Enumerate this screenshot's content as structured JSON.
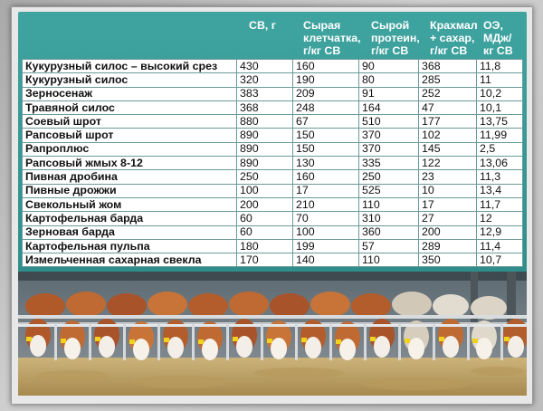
{
  "headers": {
    "dm": "СВ, г",
    "fiber_1": "Сырая",
    "fiber_2": "клетчатка,",
    "fiber_3": "г/кг СВ",
    "protein_1": "Сырой",
    "protein_2": "протеин,",
    "protein_3": "г/кг СВ",
    "starch_1": "Крахмал",
    "starch_2": "+ сахар,",
    "starch_3": "г/кг СВ",
    "energy_1": "ОЭ,",
    "energy_2": "МДж/",
    "energy_3": "кг СВ"
  },
  "rows": [
    {
      "name": "Кукурузный силос – высокий срез",
      "dm": "430",
      "fiber": "160",
      "protein": "90",
      "starch": "368",
      "energy": "11,8"
    },
    {
      "name": "Кукурузный силос",
      "dm": "320",
      "fiber": "190",
      "protein": "80",
      "starch": "285",
      "energy": "11"
    },
    {
      "name": "Зерносенаж",
      "dm": "383",
      "fiber": "209",
      "protein": "91",
      "starch": "252",
      "energy": "10,2"
    },
    {
      "name": "Травяной силос",
      "dm": "368",
      "fiber": "248",
      "protein": "164",
      "starch": "47",
      "energy": "10,1"
    },
    {
      "name": "Соевый шрот",
      "dm": "880",
      "fiber": "67",
      "protein": "510",
      "starch": "177",
      "energy": "13,75"
    },
    {
      "name": "Рапсовый шрот",
      "dm": "890",
      "fiber": "150",
      "protein": "370",
      "starch": "102",
      "energy": "11,99"
    },
    {
      "name": "Рапроплюс",
      "dm": "890",
      "fiber": "150",
      "protein": "370",
      "starch": "145",
      "energy": "2,5"
    },
    {
      "name": "Рапсовый жмых 8-12",
      "dm": "890",
      "fiber": "130",
      "protein": "335",
      "starch": "122",
      "energy": "13,06"
    },
    {
      "name": "Пивная дробина",
      "dm": "250",
      "fiber": "160",
      "protein": "250",
      "starch": "23",
      "energy": "11,3"
    },
    {
      "name": "Пивные дрожжи",
      "dm": "100",
      "fiber": "17",
      "protein": "525",
      "starch": "10",
      "energy": "13,4"
    },
    {
      "name": "Свекольный жом",
      "dm": "200",
      "fiber": "210",
      "protein": "110",
      "starch": "17",
      "energy": "11,7"
    },
    {
      "name": "Картофельная барда",
      "dm": "60",
      "fiber": "70",
      "protein": "310",
      "starch": "27",
      "energy": "12"
    },
    {
      "name": "Зерновая барда",
      "dm": "60",
      "fiber": "100",
      "protein": "360",
      "starch": "200",
      "energy": "12,9"
    },
    {
      "name": "Картофельная пульпа",
      "dm": "180",
      "fiber": "199",
      "protein": "57",
      "starch": "289",
      "energy": "11,4"
    },
    {
      "name": "Измельченная сахарная свекла",
      "dm": "170",
      "fiber": "140",
      "protein": "110",
      "starch": "350",
      "energy": "10,7"
    }
  ],
  "colors": {
    "header_teal": "#3a9c98",
    "cell_bg": "#ffffff"
  }
}
